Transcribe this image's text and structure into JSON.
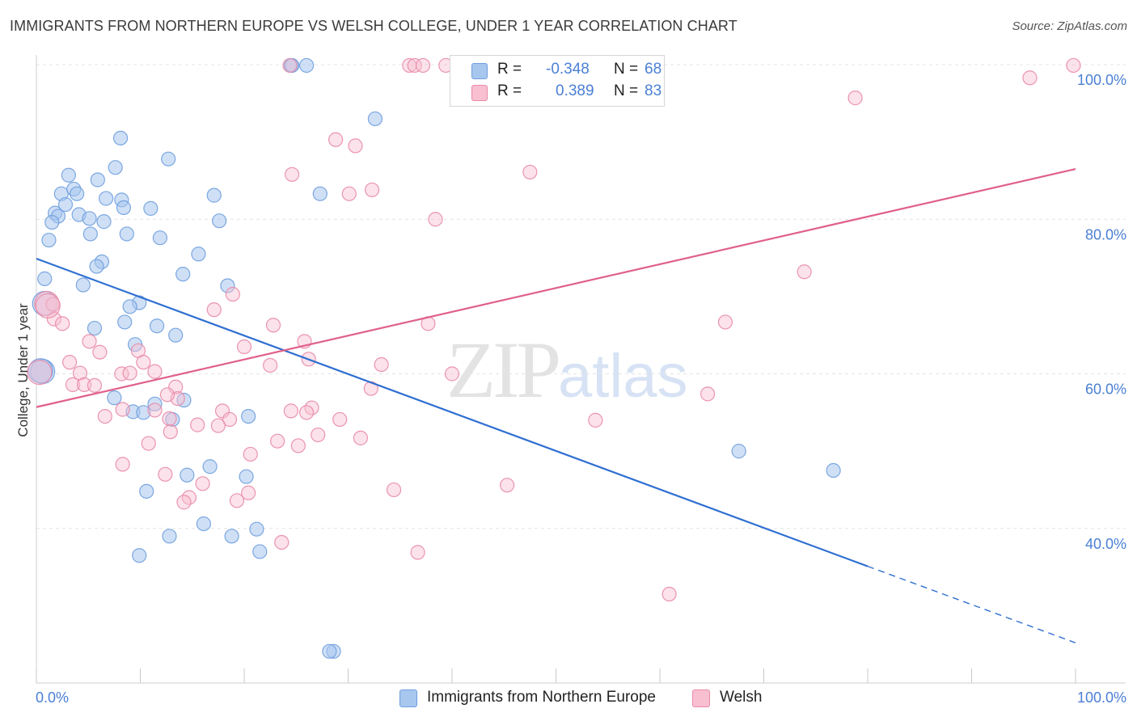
{
  "title": "IMMIGRANTS FROM NORTHERN EUROPE VS WELSH COLLEGE, UNDER 1 YEAR CORRELATION CHART",
  "source": "Source: ZipAtlas.com",
  "watermark": {
    "zip": "ZIP",
    "atlas": "atlas"
  },
  "legend": {
    "r_label": "R =",
    "n_label": "N =",
    "rows": [
      {
        "name": "Immigrants from Northern Europe",
        "r": "-0.348",
        "n": "68",
        "color": "#a8c7ef",
        "border": "#6f9fde"
      },
      {
        "name": "Welsh",
        "r": "0.389",
        "n": "83",
        "color": "#f8bfd0",
        "border": "#e88aa8"
      }
    ]
  },
  "chart_data": {
    "type": "scatter",
    "title": "IMMIGRANTS FROM NORTHERN EUROPE VS WELSH COLLEGE, UNDER 1 YEAR CORRELATION CHART",
    "xlabel": "",
    "ylabel": "College, Under 1 year",
    "xlim": [
      0,
      100
    ],
    "ylim": [
      20,
      100
    ],
    "x_tick_labels": [
      "0.0%",
      "100.0%"
    ],
    "y_ticks": [
      40,
      60,
      80,
      100
    ],
    "y_tick_labels": [
      "40.0%",
      "60.0%",
      "80.0%",
      "100.0%"
    ],
    "grid": true,
    "legend_position": "top-center",
    "series": [
      {
        "name": "Immigrants from Northern Europe",
        "color": "#6f9fde",
        "fill": "#a8c7ef",
        "trend": {
          "x0": 0,
          "y0": 74.9,
          "x1": 80,
          "y1": 35.1,
          "dashed_to_x": 100,
          "dashed_to_y": 25.2,
          "color": "#2f6fd1"
        },
        "points": [
          [
            24.5,
            99.9
          ],
          [
            26.0,
            99.9
          ],
          [
            32.6,
            93.0
          ],
          [
            8.1,
            90.5
          ],
          [
            12.7,
            87.8
          ],
          [
            7.6,
            86.7
          ],
          [
            3.1,
            85.7
          ],
          [
            5.9,
            85.1
          ],
          [
            2.4,
            83.3
          ],
          [
            3.6,
            83.9
          ],
          [
            3.9,
            83.3
          ],
          [
            6.7,
            82.7
          ],
          [
            8.2,
            82.5
          ],
          [
            27.3,
            83.3
          ],
          [
            17.1,
            83.1
          ],
          [
            2.8,
            81.9
          ],
          [
            1.8,
            80.8
          ],
          [
            2.1,
            80.4
          ],
          [
            4.1,
            80.6
          ],
          [
            5.1,
            80.1
          ],
          [
            8.4,
            81.5
          ],
          [
            11.0,
            81.4
          ],
          [
            1.5,
            79.6
          ],
          [
            6.5,
            79.7
          ],
          [
            17.6,
            79.8
          ],
          [
            5.2,
            78.1
          ],
          [
            8.7,
            78.1
          ],
          [
            11.9,
            77.6
          ],
          [
            1.2,
            77.3
          ],
          [
            15.6,
            75.5
          ],
          [
            6.3,
            74.5
          ],
          [
            5.8,
            73.9
          ],
          [
            14.1,
            72.9
          ],
          [
            0.8,
            72.3
          ],
          [
            4.5,
            71.5
          ],
          [
            18.4,
            71.4
          ],
          [
            9.9,
            69.2
          ],
          [
            9.0,
            68.7
          ],
          [
            0.8,
            69.1
          ],
          [
            8.5,
            66.7
          ],
          [
            11.6,
            66.2
          ],
          [
            5.6,
            65.9
          ],
          [
            13.4,
            65.0
          ],
          [
            9.5,
            63.8
          ],
          [
            0.6,
            60.3
          ],
          [
            7.5,
            56.9
          ],
          [
            11.4,
            56.1
          ],
          [
            14.2,
            56.6
          ],
          [
            9.3,
            55.1
          ],
          [
            10.3,
            55.0
          ],
          [
            13.1,
            54.1
          ],
          [
            20.4,
            54.5
          ],
          [
            76.7,
            47.5
          ],
          [
            67.6,
            50.0
          ],
          [
            16.7,
            48.0
          ],
          [
            14.5,
            46.9
          ],
          [
            20.2,
            46.7
          ],
          [
            10.6,
            44.8
          ],
          [
            16.1,
            40.6
          ],
          [
            12.8,
            39.0
          ],
          [
            18.8,
            39.0
          ],
          [
            21.2,
            39.9
          ],
          [
            21.5,
            37.0
          ],
          [
            9.9,
            36.5
          ],
          [
            28.6,
            24.1
          ],
          [
            28.2,
            24.1
          ],
          [
            0.4,
            60.4
          ],
          [
            24.6,
            99.9
          ]
        ]
      },
      {
        "name": "Welsh",
        "color": "#e88aa8",
        "fill": "#f8bfd0",
        "trend": {
          "x0": 0,
          "y0": 55.7,
          "x1": 100,
          "y1": 86.5,
          "color": "#e0608a"
        },
        "points": [
          [
            24.4,
            99.9
          ],
          [
            35.9,
            99.9
          ],
          [
            36.4,
            99.9
          ],
          [
            37.2,
            99.9
          ],
          [
            39.4,
            99.9
          ],
          [
            41.6,
            99.9
          ],
          [
            99.8,
            99.9
          ],
          [
            95.6,
            98.3
          ],
          [
            78.8,
            95.7
          ],
          [
            28.8,
            90.3
          ],
          [
            30.7,
            89.5
          ],
          [
            47.5,
            86.1
          ],
          [
            24.6,
            85.8
          ],
          [
            32.3,
            83.8
          ],
          [
            30.1,
            83.3
          ],
          [
            38.4,
            80.0
          ],
          [
            73.9,
            73.2
          ],
          [
            17.1,
            68.3
          ],
          [
            18.9,
            70.3
          ],
          [
            1.0,
            69.1
          ],
          [
            1.6,
            69.0
          ],
          [
            1.7,
            67.1
          ],
          [
            2.5,
            66.5
          ],
          [
            22.8,
            66.3
          ],
          [
            37.7,
            66.5
          ],
          [
            66.3,
            66.7
          ],
          [
            5.1,
            64.2
          ],
          [
            25.8,
            64.2
          ],
          [
            20.0,
            63.5
          ],
          [
            6.1,
            62.8
          ],
          [
            9.8,
            63.0
          ],
          [
            10.3,
            61.5
          ],
          [
            26.2,
            61.9
          ],
          [
            33.2,
            61.2
          ],
          [
            22.5,
            61.1
          ],
          [
            3.2,
            61.5
          ],
          [
            8.2,
            60.0
          ],
          [
            9.0,
            60.1
          ],
          [
            11.4,
            60.3
          ],
          [
            4.2,
            60.1
          ],
          [
            3.5,
            58.6
          ],
          [
            4.6,
            58.6
          ],
          [
            5.6,
            58.5
          ],
          [
            13.4,
            58.3
          ],
          [
            32.2,
            58.1
          ],
          [
            40.0,
            60.0
          ],
          [
            64.6,
            57.4
          ],
          [
            13.6,
            56.8
          ],
          [
            8.3,
            55.4
          ],
          [
            11.4,
            55.3
          ],
          [
            12.6,
            57.3
          ],
          [
            24.5,
            55.2
          ],
          [
            17.9,
            55.2
          ],
          [
            26.5,
            55.6
          ],
          [
            26.0,
            55.0
          ],
          [
            18.6,
            54.1
          ],
          [
            6.6,
            54.5
          ],
          [
            12.8,
            54.2
          ],
          [
            17.5,
            53.3
          ],
          [
            15.5,
            53.4
          ],
          [
            29.2,
            54.1
          ],
          [
            53.8,
            54.0
          ],
          [
            12.9,
            52.5
          ],
          [
            23.2,
            51.3
          ],
          [
            27.1,
            52.1
          ],
          [
            31.2,
            51.7
          ],
          [
            10.8,
            51.0
          ],
          [
            25.2,
            50.7
          ],
          [
            20.6,
            49.6
          ],
          [
            8.3,
            48.3
          ],
          [
            12.4,
            47.0
          ],
          [
            16.0,
            45.8
          ],
          [
            34.4,
            45.0
          ],
          [
            45.3,
            45.6
          ],
          [
            20.4,
            44.6
          ],
          [
            14.7,
            44.0
          ],
          [
            14.2,
            43.4
          ],
          [
            19.3,
            43.6
          ],
          [
            23.6,
            38.2
          ],
          [
            36.7,
            36.9
          ],
          [
            60.9,
            31.5
          ],
          [
            0.3,
            60.2
          ],
          [
            1.1,
            68.8
          ]
        ]
      }
    ]
  }
}
